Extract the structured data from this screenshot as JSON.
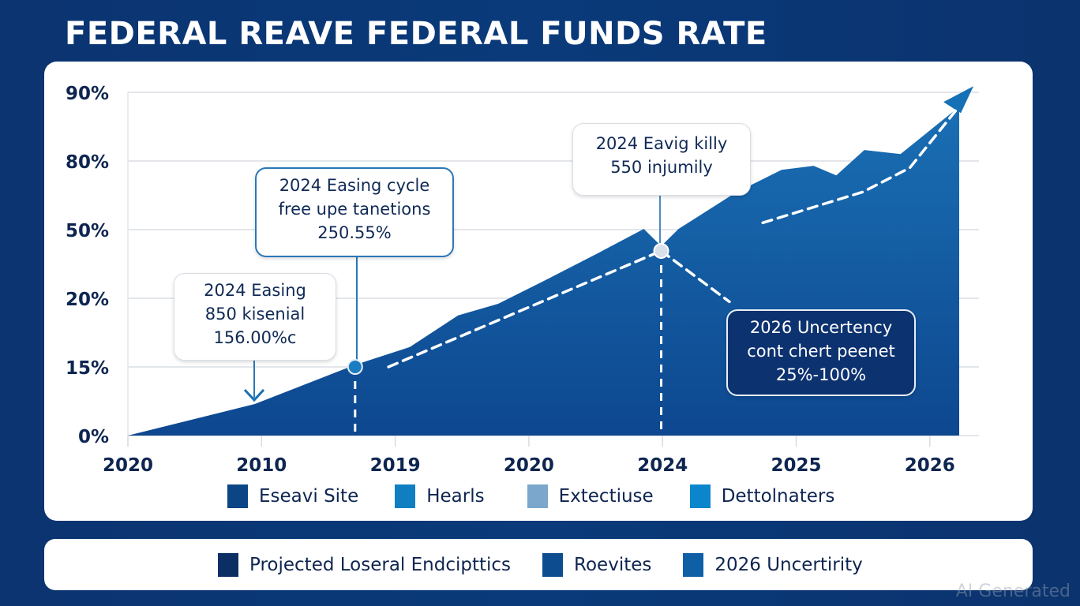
{
  "title": "FEDERAL REAVE FEDERAL FUNDS RATE",
  "watermark": "AI Generated",
  "colors": {
    "background": "#0b3470",
    "area_fill_top": "#1a6fb4",
    "area_fill_bottom": "#0d478f",
    "grid": "#e3e6ea",
    "text_dark": "#0e2550",
    "annotation_border": "#2a78b8",
    "dark_box": "#0d3270"
  },
  "annotations": [
    {
      "id": "left",
      "lines": [
        "2024 Easing",
        "850 kisenial",
        "156.00%c"
      ]
    },
    {
      "id": "middle",
      "lines": [
        "2024 Easing cycle",
        "free upe tanetions",
        "250.55%"
      ]
    },
    {
      "id": "top",
      "lines": [
        "2024 Eavig killy",
        "550 injumily"
      ]
    },
    {
      "id": "dark",
      "lines": [
        "2026 Uncertency",
        "cont chert peenet",
        "25%-100%"
      ]
    }
  ],
  "legend_top": [
    {
      "label": "Eseavi Site",
      "color": "#0b4585"
    },
    {
      "label": "Hearls",
      "color": "#0f7fc2"
    },
    {
      "label": "Extectiuse",
      "color": "#7ba7cc"
    },
    {
      "label": "Dettolnaters",
      "color": "#0b86cc"
    }
  ],
  "legend_bottom": [
    {
      "label": "Projected Loseral Endcipttics",
      "color": "#0b2f63"
    },
    {
      "label": "Roevites",
      "color": "#0d4c8f"
    },
    {
      "label": "2026 Uncertirity",
      "color": "#0e5fa6"
    }
  ],
  "chart_data": {
    "type": "area",
    "title": "FEDERAL REAVE FEDERAL FUNDS RATE",
    "xlabel": "",
    "ylabel": "",
    "x_tick_labels": [
      "2020",
      "2010",
      "2019",
      "2020",
      "2024",
      "2025",
      "2026"
    ],
    "y_tick_labels": [
      "0%",
      "15%",
      "20%",
      "50%",
      "80%",
      "90%"
    ],
    "note": "Y tick labels sit on evenly spaced gridlines; points are given as x = category index (0-6) and y = gridline level index (0-5).",
    "xlim": [
      0,
      6.4
    ],
    "ylim": [
      0,
      5
    ],
    "grid": true,
    "series": [
      {
        "name": "Federal Funds Rate",
        "points": [
          [
            0,
            0
          ],
          [
            0.95,
            0.46
          ],
          [
            1.7,
            1.03
          ],
          [
            2.11,
            1.29
          ],
          [
            2.47,
            1.75
          ],
          [
            2.77,
            1.92
          ],
          [
            3.12,
            2.26
          ],
          [
            3.53,
            2.67
          ],
          [
            3.86,
            3.01
          ],
          [
            3.99,
            2.76
          ],
          [
            4.12,
            3.01
          ],
          [
            4.54,
            3.53
          ],
          [
            4.89,
            3.87
          ],
          [
            5.13,
            3.93
          ],
          [
            5.3,
            3.79
          ],
          [
            5.51,
            4.16
          ],
          [
            5.78,
            4.1
          ],
          [
            6.22,
            4.79
          ]
        ]
      },
      {
        "name": "Trend (dashed)",
        "points": [
          [
            1.95,
            1.0
          ],
          [
            3.99,
            2.69
          ]
        ]
      },
      {
        "name": "Trend projection (dashed)",
        "points": [
          [
            4.75,
            3.1
          ],
          [
            5.5,
            3.55
          ],
          [
            5.85,
            3.9
          ],
          [
            6.2,
            4.75
          ]
        ]
      },
      {
        "name": "Downside branch (dashed)",
        "points": [
          [
            3.99,
            2.69
          ],
          [
            4.5,
            1.95
          ]
        ]
      }
    ],
    "markers": [
      {
        "name": "marker-2019",
        "x": 1.7,
        "y": 1.0
      },
      {
        "name": "marker-2024",
        "x": 3.99,
        "y": 2.69
      }
    ],
    "legend": [
      "Eseavi Site",
      "Hearls",
      "Extectiuse",
      "Dettolnaters"
    ],
    "legend_position": "bottom"
  }
}
